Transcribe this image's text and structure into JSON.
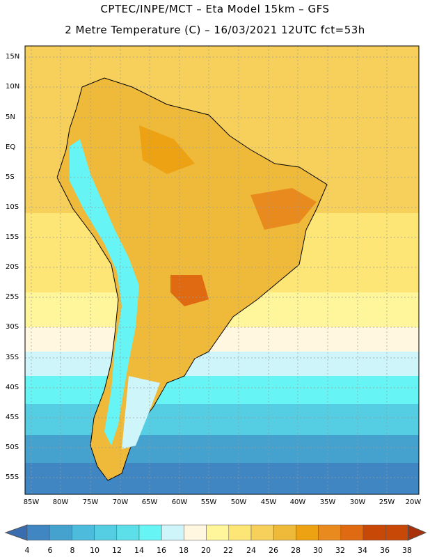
{
  "title_line1": "CPTEC/INPE/MCT  –  Eta Model 15km – GFS",
  "title_line2": "2 Metre Temperature (C) – 16/03/2021 12UTC fct=53h",
  "lat_labels": [
    "15N",
    "10N",
    "5N",
    "EQ",
    "5S",
    "10S",
    "15S",
    "20S",
    "25S",
    "30S",
    "35S",
    "40S",
    "45S",
    "50S",
    "55S"
  ],
  "lon_labels": [
    "85W",
    "80W",
    "75W",
    "70W",
    "65W",
    "60W",
    "55W",
    "50W",
    "45W",
    "40W",
    "35W",
    "30W",
    "25W",
    "20W"
  ],
  "colorbar": {
    "labels": [
      "4",
      "6",
      "8",
      "10",
      "12",
      "14",
      "16",
      "18",
      "20",
      "22",
      "24",
      "26",
      "28",
      "30",
      "32",
      "34",
      "36",
      "38"
    ],
    "colors": [
      "#3a6cb0",
      "#3f86c2",
      "#45a2cf",
      "#4dbbdc",
      "#55cde2",
      "#5cdfe8",
      "#66f4f5",
      "#cdf5fa",
      "#fff7e0",
      "#fff59a",
      "#fde676",
      "#f6d05a",
      "#efb93a",
      "#eda214",
      "#e98a1e",
      "#e06a12",
      "#c84808",
      "#a8300a"
    ]
  }
}
